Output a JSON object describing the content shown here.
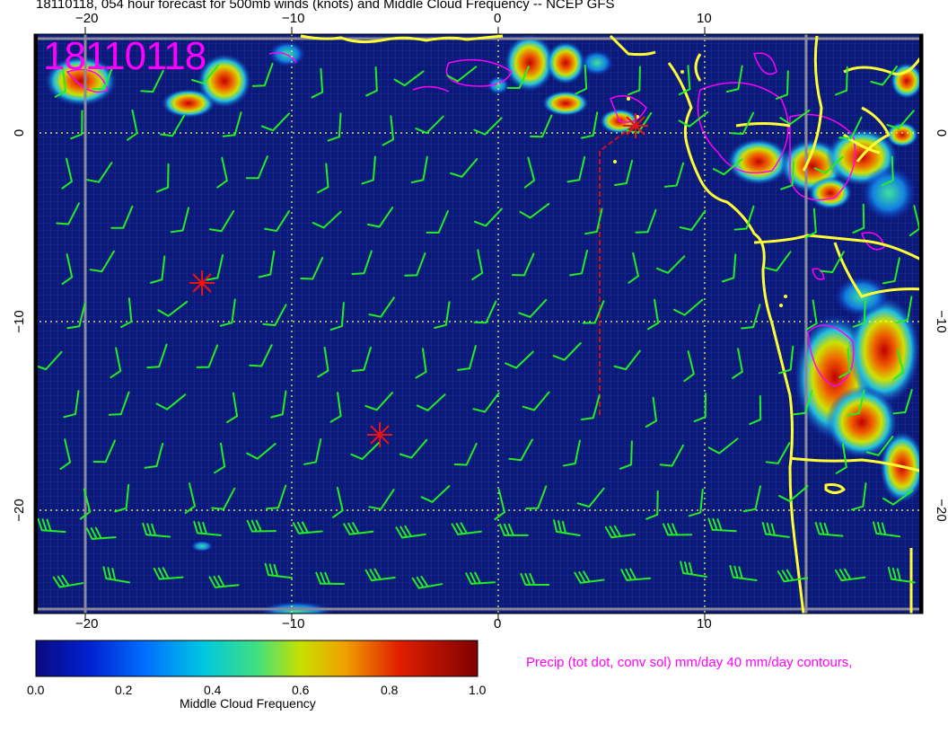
{
  "title": "18110118, 054 hour forecast for 500mb winds (knots) and Middle Cloud Frequency -- NCEP GFS",
  "stamp": "18110118",
  "precip_note": "Precip (tot dot, conv sol) mm/day 40 mm/day contours,",
  "colorbar": {
    "label": "Middle Cloud Frequency",
    "ticks": [
      "0.0",
      "0.2",
      "0.4",
      "0.6",
      "0.8",
      "1.0"
    ]
  },
  "x_ticks_top": [
    "−20",
    "−10",
    "0",
    "10"
  ],
  "x_ticks_bottom": [
    "−20",
    "−10",
    "0",
    "10"
  ],
  "y_ticks_left": [
    "0",
    "−10",
    "−20"
  ],
  "y_ticks_right": [
    "0",
    "−10",
    "−20"
  ],
  "colors": {
    "ocean": "#0b1a7a",
    "coast": "#ffff33",
    "barbs": "#22ee22",
    "precip": "#ff00ff",
    "markers": "#ee1111",
    "grid_dotted": "#ffff66"
  }
}
